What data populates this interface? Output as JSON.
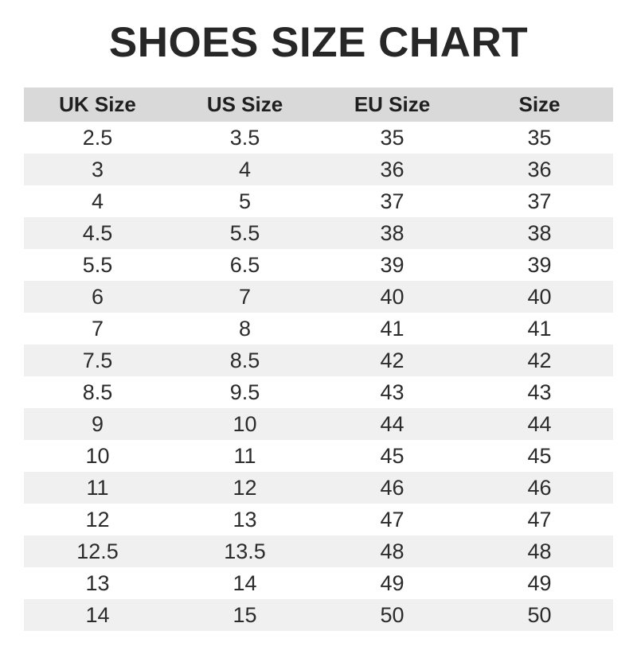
{
  "page": {
    "title": "SHOES SIZE CHART"
  },
  "chart_data": {
    "type": "table",
    "title": "SHOES SIZE CHART",
    "columns": [
      "UK Size",
      "US Size",
      "EU Size",
      "Size"
    ],
    "rows": [
      [
        "2.5",
        "3.5",
        "35",
        "35"
      ],
      [
        "3",
        "4",
        "36",
        "36"
      ],
      [
        "4",
        "5",
        "37",
        "37"
      ],
      [
        "4.5",
        "5.5",
        "38",
        "38"
      ],
      [
        "5.5",
        "6.5",
        "39",
        "39"
      ],
      [
        "6",
        "7",
        "40",
        "40"
      ],
      [
        "7",
        "8",
        "41",
        "41"
      ],
      [
        "7.5",
        "8.5",
        "42",
        "42"
      ],
      [
        "8.5",
        "9.5",
        "43",
        "43"
      ],
      [
        "9",
        "10",
        "44",
        "44"
      ],
      [
        "10",
        "11",
        "45",
        "45"
      ],
      [
        "11",
        "12",
        "46",
        "46"
      ],
      [
        "12",
        "13",
        "47",
        "47"
      ],
      [
        "12.5",
        "13.5",
        "48",
        "48"
      ],
      [
        "13",
        "14",
        "49",
        "49"
      ],
      [
        "14",
        "15",
        "50",
        "50"
      ]
    ],
    "layout": {
      "striped_rows": true,
      "stripe_pattern": "even rows shaded",
      "borders": "none"
    }
  },
  "colors": {
    "background": "#ffffff",
    "header_bg": "#d9d9d9",
    "row_alt_bg": "#f0f0f0",
    "title_text": "#272727",
    "header_text": "#1f1f1f",
    "cell_text": "#2b2b2b"
  }
}
